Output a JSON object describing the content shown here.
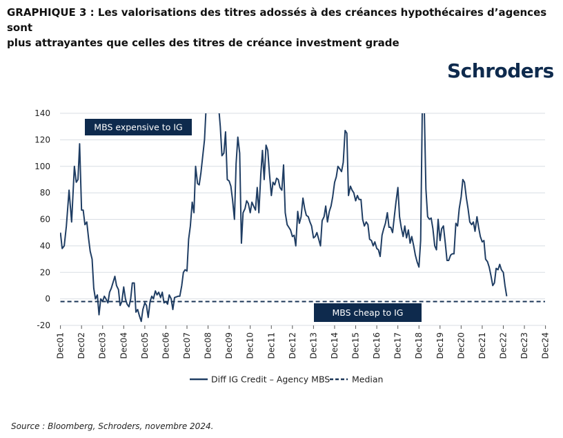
{
  "title_line1": "GRAPHIQUE 3 : Les valorisations des titres adossés à des créances hypothécaires d’agences sont",
  "title_line2": "plus attrayantes que celles des titres de créance investment grade",
  "logo": "Schroders",
  "source": "Source : Bloomberg, Schroders, novembre 2024.",
  "colors": {
    "series": "#1f3d63",
    "median": "#1a3557",
    "box": "#0e2a4d",
    "grid": "#d8dde3",
    "logo": "#0e2a4d"
  },
  "chart_data": {
    "type": "line",
    "ylim": [
      -20,
      140
    ],
    "xlim": [
      2001.9,
      2024.9
    ],
    "y_ticks": [
      "140",
      "120",
      "100",
      "80",
      "60",
      "40",
      "20",
      "0",
      "-20"
    ],
    "x_ticks": [
      "Dec01",
      "Dec02",
      "Dec03",
      "Dec04",
      "Dec05",
      "Dec06",
      "Dec07",
      "Dec08",
      "Dec09",
      "Dec10",
      "Dec11",
      "Dec12",
      "Dec13",
      "Dec14",
      "Dec15",
      "Dec16",
      "Dec17",
      "Dec18",
      "Dec19",
      "Dec20",
      "Dec21",
      "Dec22",
      "Dec23",
      "Dec24"
    ],
    "annotations": [
      {
        "text": "MBS expensive to IG",
        "position": "top-left"
      },
      {
        "text": "MBS cheap to IG",
        "position": "bottom-center"
      }
    ],
    "legend": {
      "placement": "bottom-center"
    },
    "series": [
      {
        "name": "Diff IG Credit – Agency MBS",
        "style": "solid",
        "points": [
          [
            2001.92,
            50
          ],
          [
            2002.0,
            38
          ],
          [
            2002.1,
            40
          ],
          [
            2002.2,
            55
          ],
          [
            2002.33,
            82
          ],
          [
            2002.45,
            58
          ],
          [
            2002.58,
            100
          ],
          [
            2002.67,
            88
          ],
          [
            2002.75,
            90
          ],
          [
            2002.83,
            117
          ],
          [
            2002.92,
            67
          ],
          [
            2003.0,
            67
          ],
          [
            2003.08,
            56
          ],
          [
            2003.17,
            58
          ],
          [
            2003.25,
            46
          ],
          [
            2003.33,
            36
          ],
          [
            2003.42,
            30
          ],
          [
            2003.5,
            8
          ],
          [
            2003.58,
            0
          ],
          [
            2003.67,
            3
          ],
          [
            2003.75,
            -12
          ],
          [
            2003.83,
            0
          ],
          [
            2003.92,
            -2
          ],
          [
            2004.0,
            2
          ],
          [
            2004.08,
            0
          ],
          [
            2004.17,
            -3
          ],
          [
            2004.25,
            5
          ],
          [
            2004.33,
            8
          ],
          [
            2004.5,
            17
          ],
          [
            2004.58,
            10
          ],
          [
            2004.67,
            7
          ],
          [
            2004.75,
            -5
          ],
          [
            2004.83,
            -2
          ],
          [
            2004.92,
            9
          ],
          [
            2005.0,
            0
          ],
          [
            2005.08,
            -4
          ],
          [
            2005.17,
            -6
          ],
          [
            2005.25,
            0
          ],
          [
            2005.33,
            12
          ],
          [
            2005.42,
            12
          ],
          [
            2005.5,
            -10
          ],
          [
            2005.58,
            -8
          ],
          [
            2005.67,
            -13
          ],
          [
            2005.75,
            -17
          ],
          [
            2005.83,
            -8
          ],
          [
            2005.92,
            -3
          ],
          [
            2006.0,
            -5
          ],
          [
            2006.08,
            -14
          ],
          [
            2006.17,
            -2
          ],
          [
            2006.25,
            2
          ],
          [
            2006.33,
            0
          ],
          [
            2006.42,
            6
          ],
          [
            2006.5,
            3
          ],
          [
            2006.58,
            5
          ],
          [
            2006.67,
            1
          ],
          [
            2006.75,
            5
          ],
          [
            2006.83,
            -3
          ],
          [
            2006.92,
            -2
          ],
          [
            2007.0,
            -4
          ],
          [
            2007.08,
            3
          ],
          [
            2007.17,
            0
          ],
          [
            2007.25,
            -8
          ],
          [
            2007.33,
            1
          ],
          [
            2007.5,
            2
          ],
          [
            2007.58,
            2
          ],
          [
            2007.67,
            10
          ],
          [
            2007.75,
            20
          ],
          [
            2007.83,
            22
          ],
          [
            2007.92,
            21
          ],
          [
            2008.0,
            45
          ],
          [
            2008.08,
            55
          ],
          [
            2008.17,
            73
          ],
          [
            2008.25,
            65
          ],
          [
            2008.33,
            100
          ],
          [
            2008.42,
            87
          ],
          [
            2008.5,
            86
          ],
          [
            2008.58,
            95
          ],
          [
            2008.67,
            108
          ],
          [
            2008.75,
            120
          ],
          [
            2008.83,
            145
          ],
          [
            2009.42,
            145
          ],
          [
            2009.5,
            130
          ],
          [
            2009.58,
            108
          ],
          [
            2009.67,
            110
          ],
          [
            2009.75,
            126
          ],
          [
            2009.83,
            90
          ],
          [
            2009.92,
            89
          ],
          [
            2010.0,
            85
          ],
          [
            2010.08,
            75
          ],
          [
            2010.17,
            60
          ],
          [
            2010.25,
            102
          ],
          [
            2010.33,
            122
          ],
          [
            2010.42,
            110
          ],
          [
            2010.5,
            42
          ],
          [
            2010.58,
            65
          ],
          [
            2010.67,
            68
          ],
          [
            2010.75,
            74
          ],
          [
            2010.83,
            72
          ],
          [
            2010.92,
            65
          ],
          [
            2011.0,
            73
          ],
          [
            2011.08,
            70
          ],
          [
            2011.17,
            67
          ],
          [
            2011.25,
            84
          ],
          [
            2011.33,
            65
          ],
          [
            2011.42,
            94
          ],
          [
            2011.5,
            112
          ],
          [
            2011.58,
            90
          ],
          [
            2011.67,
            116
          ],
          [
            2011.75,
            112
          ],
          [
            2011.83,
            95
          ],
          [
            2011.92,
            78
          ],
          [
            2012.0,
            88
          ],
          [
            2012.08,
            86
          ],
          [
            2012.17,
            91
          ],
          [
            2012.25,
            90
          ],
          [
            2012.33,
            84
          ],
          [
            2012.42,
            82
          ],
          [
            2012.5,
            101
          ],
          [
            2012.58,
            65
          ],
          [
            2012.67,
            56
          ],
          [
            2012.75,
            54
          ],
          [
            2012.83,
            52
          ],
          [
            2012.92,
            47
          ],
          [
            2013.0,
            48
          ],
          [
            2013.08,
            40
          ],
          [
            2013.17,
            66
          ],
          [
            2013.25,
            57
          ],
          [
            2013.33,
            62
          ],
          [
            2013.42,
            76
          ],
          [
            2013.5,
            68
          ],
          [
            2013.58,
            63
          ],
          [
            2013.67,
            62
          ],
          [
            2013.75,
            58
          ],
          [
            2013.83,
            55
          ],
          [
            2013.92,
            46
          ],
          [
            2014.0,
            47
          ],
          [
            2014.08,
            50
          ],
          [
            2014.17,
            45
          ],
          [
            2014.25,
            40
          ],
          [
            2014.33,
            59
          ],
          [
            2014.42,
            62
          ],
          [
            2014.5,
            70
          ],
          [
            2014.58,
            58
          ],
          [
            2014.67,
            66
          ],
          [
            2014.75,
            70
          ],
          [
            2014.83,
            77
          ],
          [
            2014.92,
            88
          ],
          [
            2015.0,
            92
          ],
          [
            2015.08,
            100
          ],
          [
            2015.17,
            98
          ],
          [
            2015.25,
            96
          ],
          [
            2015.33,
            103
          ],
          [
            2015.42,
            127
          ],
          [
            2015.5,
            125
          ],
          [
            2015.58,
            78
          ],
          [
            2015.67,
            85
          ],
          [
            2015.75,
            82
          ],
          [
            2015.83,
            80
          ],
          [
            2015.92,
            74
          ],
          [
            2016.0,
            78
          ],
          [
            2016.08,
            75
          ],
          [
            2016.17,
            75
          ],
          [
            2016.25,
            60
          ],
          [
            2016.33,
            55
          ],
          [
            2016.42,
            58
          ],
          [
            2016.5,
            56
          ],
          [
            2016.58,
            45
          ],
          [
            2016.67,
            44
          ],
          [
            2016.75,
            40
          ],
          [
            2016.83,
            43
          ],
          [
            2016.92,
            38
          ],
          [
            2017.0,
            37
          ],
          [
            2017.08,
            32
          ],
          [
            2017.17,
            48
          ],
          [
            2017.25,
            53
          ],
          [
            2017.33,
            57
          ],
          [
            2017.42,
            65
          ],
          [
            2017.5,
            54
          ],
          [
            2017.58,
            54
          ],
          [
            2017.67,
            50
          ],
          [
            2017.75,
            62
          ],
          [
            2017.83,
            73
          ],
          [
            2017.92,
            84
          ],
          [
            2018.0,
            62
          ],
          [
            2018.08,
            54
          ],
          [
            2018.17,
            47
          ],
          [
            2018.25,
            55
          ],
          [
            2018.33,
            46
          ],
          [
            2018.42,
            52
          ],
          [
            2018.5,
            42
          ],
          [
            2018.58,
            47
          ],
          [
            2018.67,
            40
          ],
          [
            2018.75,
            33
          ],
          [
            2018.83,
            28
          ],
          [
            2018.92,
            24
          ],
          [
            2019.0,
            44
          ],
          [
            2019.08,
            145
          ],
          [
            2019.17,
            145
          ],
          [
            2019.25,
            83
          ],
          [
            2019.33,
            62
          ],
          [
            2019.42,
            60
          ],
          [
            2019.5,
            61
          ],
          [
            2019.58,
            53
          ],
          [
            2019.67,
            40
          ],
          [
            2019.75,
            37
          ],
          [
            2019.83,
            60
          ],
          [
            2019.92,
            44
          ],
          [
            2020.0,
            53
          ],
          [
            2020.08,
            55
          ],
          [
            2020.17,
            42
          ],
          [
            2020.25,
            29
          ],
          [
            2020.33,
            29
          ],
          [
            2020.42,
            33
          ],
          [
            2020.5,
            34
          ],
          [
            2020.58,
            34
          ],
          [
            2020.67,
            57
          ],
          [
            2020.75,
            55
          ],
          [
            2020.83,
            68
          ],
          [
            2020.92,
            77
          ],
          [
            2021.0,
            90
          ],
          [
            2021.08,
            88
          ],
          [
            2021.17,
            76
          ],
          [
            2021.25,
            68
          ],
          [
            2021.33,
            58
          ],
          [
            2021.42,
            56
          ],
          [
            2021.5,
            58
          ],
          [
            2021.58,
            51
          ],
          [
            2021.67,
            62
          ],
          [
            2021.75,
            54
          ],
          [
            2021.83,
            47
          ],
          [
            2021.92,
            43
          ],
          [
            2022.0,
            44
          ],
          [
            2022.08,
            30
          ],
          [
            2022.17,
            28
          ],
          [
            2022.25,
            24
          ],
          [
            2022.33,
            18
          ],
          [
            2022.42,
            10
          ],
          [
            2022.5,
            12
          ],
          [
            2022.58,
            23
          ],
          [
            2022.67,
            22
          ],
          [
            2022.75,
            26
          ],
          [
            2022.83,
            22
          ],
          [
            2022.92,
            20
          ],
          [
            2023.0,
            10
          ],
          [
            2023.08,
            2
          ]
        ]
      },
      {
        "name": "Median",
        "style": "dashed",
        "points": [
          [
            2001.92,
            -2
          ],
          [
            2024.9,
            -2
          ]
        ]
      }
    ]
  }
}
